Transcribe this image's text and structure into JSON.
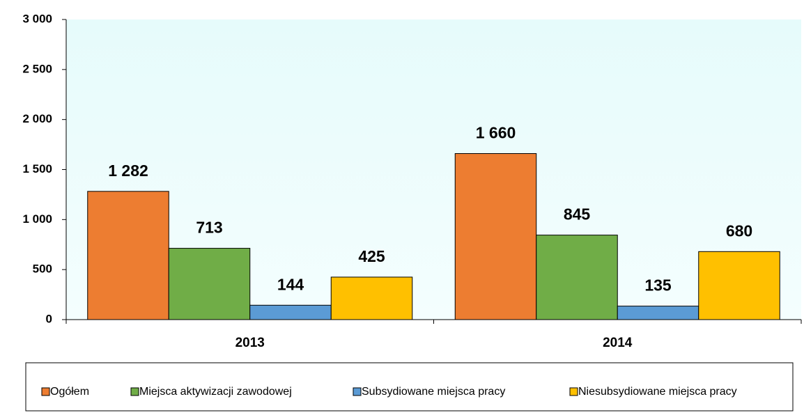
{
  "chart_data": {
    "type": "bar",
    "categories": [
      "2013",
      "2014"
    ],
    "series": [
      {
        "name": "Ogółem",
        "color": "#ED7D31",
        "values": [
          1282,
          1660
        ],
        "value_labels": [
          "1 282",
          "1 660"
        ]
      },
      {
        "name": "Miejsca aktywizacji zawodowej",
        "color": "#70AD47",
        "values": [
          713,
          845
        ]
      },
      {
        "name": "Subsydiowane miejsca pracy",
        "color": "#5B9BD5",
        "values": [
          144,
          135
        ]
      },
      {
        "name": "Niesubsydiowane miejsca pracy",
        "color": "#FFC000",
        "values": [
          425,
          680
        ]
      }
    ],
    "ylim": [
      0,
      3000
    ],
    "yticks": [
      0,
      500,
      {
        "value": 1000,
        "label": "1 000"
      },
      {
        "value": 1500,
        "label": "1 500"
      },
      {
        "value": 2000,
        "label": "2 000"
      },
      {
        "value": 2500,
        "label": "2 500"
      },
      {
        "value": 3000,
        "label": "3 000"
      }
    ],
    "legend": "bottom"
  }
}
